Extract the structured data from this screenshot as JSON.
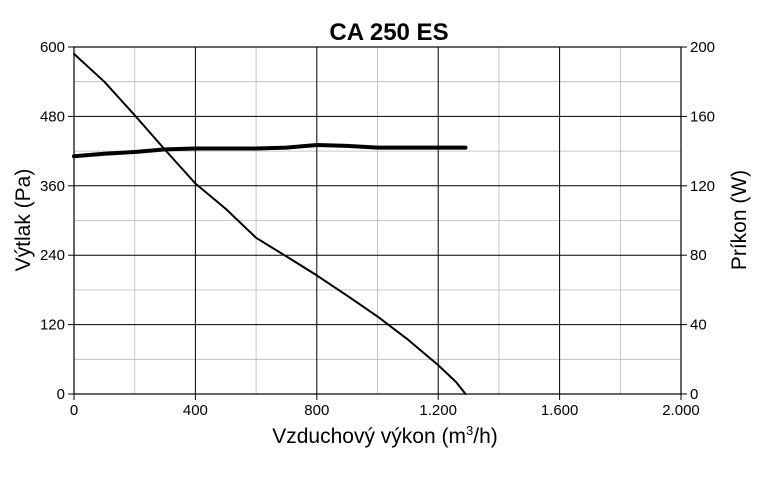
{
  "chart_data": {
    "type": "line",
    "title": "CA 250 ES",
    "xlabel": "Vzduchový výkon (m",
    "xlabel_sup": "3",
    "xlabel_end": "/h)",
    "ylabel": "Výtlak (Pa)",
    "ylabel_right": "Príkon (W)",
    "xlim": [
      0,
      2000
    ],
    "ylim": [
      0,
      600
    ],
    "ylim_right": [
      0,
      200
    ],
    "x_ticks": [
      0,
      400,
      800,
      1200,
      1600,
      2000
    ],
    "x_tick_labels": [
      "0",
      "400",
      "800",
      "1.200",
      "1.600",
      "2.000"
    ],
    "y_ticks": [
      0,
      120,
      240,
      360,
      480,
      600
    ],
    "y_tick_labels": [
      "0",
      "120",
      "240",
      "360",
      "480",
      "600"
    ],
    "y_right_ticks": [
      0,
      40,
      80,
      120,
      160,
      200
    ],
    "y_right_tick_labels": [
      "0",
      "40",
      "80",
      "120",
      "160",
      "200"
    ],
    "grid": true,
    "series": [
      {
        "axis": "left",
        "line_color": "#000000",
        "x": [
          0,
          100,
          200,
          300,
          400,
          500,
          600,
          700,
          800,
          900,
          1000,
          1100,
          1200,
          1260,
          1290
        ],
        "y": [
          588,
          540,
          482,
          422,
          364,
          320,
          270,
          238,
          205,
          170,
          134,
          94,
          50,
          20,
          0
        ]
      },
      {
        "axis": "right",
        "line_color": "#000000",
        "x": [
          0,
          100,
          200,
          300,
          400,
          500,
          600,
          700,
          800,
          900,
          1000,
          1100,
          1200,
          1290
        ],
        "y": [
          137,
          138.5,
          139.5,
          141,
          141.5,
          141.5,
          141.5,
          142,
          143.5,
          143,
          142,
          142,
          142,
          142
        ]
      }
    ]
  }
}
